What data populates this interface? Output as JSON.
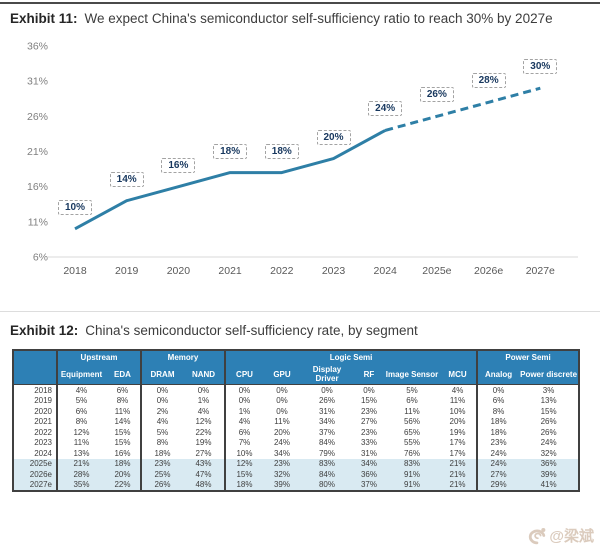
{
  "exhibit11": {
    "label": "Exhibit 11:",
    "title": "We expect China's semiconductor self-sufficiency ratio to reach 30% by 2027e"
  },
  "exhibit12": {
    "label": "Exhibit 12:",
    "title": "China's semiconductor self-sufficiency rate, by segment"
  },
  "chart_data": [
    {
      "type": "line",
      "title": "We expect China's semiconductor self-sufficiency ratio to reach 30% by 2027e",
      "categories": [
        "2018",
        "2019",
        "2020",
        "2021",
        "2022",
        "2023",
        "2024",
        "2025e",
        "2026e",
        "2027e"
      ],
      "values": [
        10,
        14,
        16,
        18,
        18,
        20,
        24,
        26,
        28,
        30
      ],
      "unit": "%",
      "data_labels": [
        "10%",
        "14%",
        "16%",
        "18%",
        "18%",
        "20%",
        "24%",
        "26%",
        "28%",
        "30%"
      ],
      "solid_through_category": "2024",
      "solid_through_index": 6,
      "y_ticks": [
        36,
        31,
        26,
        21,
        16,
        11,
        6
      ],
      "ylim": [
        6,
        36
      ],
      "grid": false,
      "legend": "none",
      "xlabel": "",
      "ylabel": "",
      "line_color": "#2e7fa6",
      "label_text_color": "#17375e"
    },
    {
      "type": "table",
      "title": "China's semiconductor self-sufficiency rate, by segment",
      "groups": [
        {
          "label": "",
          "span": 1
        },
        {
          "label": "Upstream",
          "span": 2
        },
        {
          "label": "Memory",
          "span": 2
        },
        {
          "label": "Logic Semi",
          "span": 6
        },
        {
          "label": "Power Semi",
          "span": 2
        }
      ],
      "columns": [
        "Equipment",
        "EDA",
        "DRAM",
        "NAND",
        "CPU",
        "GPU",
        "Display Driver",
        "RF",
        "Image Sensor",
        "MCU",
        "Analog",
        "Power discrete"
      ],
      "group_start_columns": [
        0,
        2,
        4,
        10
      ],
      "rows": [
        {
          "year": "2018",
          "highlight": false,
          "values": [
            "4%",
            "6%",
            "0%",
            "0%",
            "0%",
            "0%",
            "0%",
            "0%",
            "5%",
            "4%",
            "0%",
            "3%"
          ]
        },
        {
          "year": "2019",
          "highlight": false,
          "values": [
            "5%",
            "8%",
            "0%",
            "1%",
            "0%",
            "0%",
            "26%",
            "15%",
            "6%",
            "11%",
            "6%",
            "13%"
          ]
        },
        {
          "year": "2020",
          "highlight": false,
          "values": [
            "6%",
            "11%",
            "2%",
            "4%",
            "1%",
            "0%",
            "31%",
            "23%",
            "11%",
            "10%",
            "8%",
            "15%"
          ]
        },
        {
          "year": "2021",
          "highlight": false,
          "values": [
            "8%",
            "14%",
            "4%",
            "12%",
            "4%",
            "11%",
            "34%",
            "27%",
            "56%",
            "20%",
            "18%",
            "26%"
          ]
        },
        {
          "year": "2022",
          "highlight": false,
          "values": [
            "12%",
            "15%",
            "5%",
            "22%",
            "6%",
            "20%",
            "37%",
            "23%",
            "65%",
            "19%",
            "18%",
            "26%"
          ]
        },
        {
          "year": "2023",
          "highlight": false,
          "values": [
            "11%",
            "15%",
            "8%",
            "19%",
            "7%",
            "24%",
            "84%",
            "33%",
            "55%",
            "17%",
            "23%",
            "24%"
          ]
        },
        {
          "year": "2024",
          "highlight": false,
          "values": [
            "13%",
            "16%",
            "18%",
            "27%",
            "10%",
            "34%",
            "79%",
            "31%",
            "76%",
            "17%",
            "24%",
            "32%"
          ]
        },
        {
          "year": "2025e",
          "highlight": true,
          "values": [
            "21%",
            "18%",
            "23%",
            "43%",
            "12%",
            "23%",
            "83%",
            "34%",
            "83%",
            "21%",
            "24%",
            "36%"
          ]
        },
        {
          "year": "2026e",
          "highlight": true,
          "values": [
            "28%",
            "20%",
            "25%",
            "47%",
            "15%",
            "32%",
            "84%",
            "36%",
            "91%",
            "21%",
            "27%",
            "39%"
          ]
        },
        {
          "year": "2027e",
          "highlight": true,
          "values": [
            "35%",
            "22%",
            "26%",
            "48%",
            "18%",
            "39%",
            "80%",
            "37%",
            "91%",
            "21%",
            "29%",
            "41%"
          ]
        }
      ],
      "header_bg": "#2d80b5",
      "highlight_bg": "#d9eaf2"
    }
  ],
  "watermark": {
    "icon": "weibo-logo",
    "text": "@梁斌"
  }
}
